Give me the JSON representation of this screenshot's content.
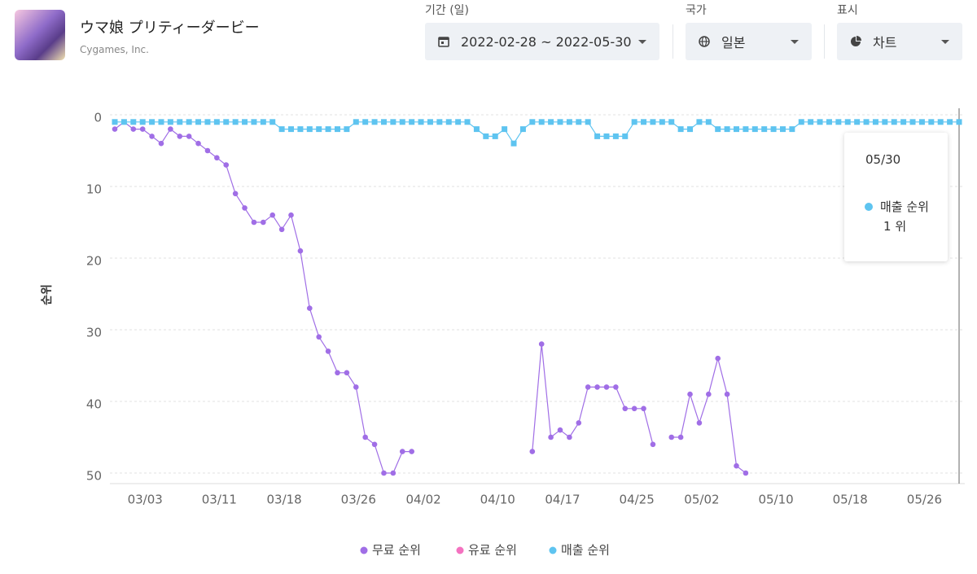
{
  "header": {
    "app_title": "ウマ娘 プリティーダービー",
    "publisher": "Cygames, Inc."
  },
  "filters": [
    {
      "label": "기간 (일)",
      "value": "2022-02-28 ~ 2022-05-30"
    },
    {
      "label": "국가",
      "value": "일본"
    },
    {
      "label": "표시",
      "value": "차트"
    }
  ],
  "chart_data": {
    "type": "line",
    "ylabel": "순위",
    "ylim": [
      0,
      50
    ],
    "yticks": [
      0,
      10,
      20,
      30,
      40,
      50
    ],
    "y_reversed": true,
    "grid": true,
    "legend": "bottom",
    "categories": [
      null,
      null,
      null,
      "03/03",
      null,
      null,
      null,
      null,
      null,
      null,
      null,
      "03/11",
      null,
      null,
      null,
      null,
      null,
      null,
      "03/18",
      null,
      null,
      null,
      null,
      null,
      null,
      null,
      "03/26",
      null,
      null,
      null,
      null,
      null,
      null,
      "04/02",
      null,
      null,
      null,
      null,
      null,
      null,
      null,
      "04/10",
      null,
      null,
      null,
      null,
      null,
      null,
      "04/17",
      null,
      null,
      null,
      null,
      null,
      null,
      null,
      "04/25",
      null,
      null,
      null,
      null,
      null,
      null,
      "05/02",
      null,
      null,
      null,
      null,
      null,
      null,
      null,
      "05/10",
      null,
      null,
      null,
      null,
      null,
      null,
      null,
      "05/18",
      null,
      null,
      null,
      null,
      null,
      null,
      null,
      "05/26",
      null,
      null,
      null,
      "05/30"
    ],
    "series": [
      {
        "name": "무료 순위",
        "color": "#a06ee6",
        "marker": "circle",
        "values": [
          2,
          1,
          2,
          2,
          3,
          4,
          2,
          3,
          3,
          4,
          5,
          6,
          7,
          11,
          13,
          15,
          15,
          14,
          16,
          14,
          19,
          27,
          31,
          33,
          36,
          36,
          38,
          45,
          46,
          50,
          50,
          47,
          47,
          null,
          null,
          null,
          null,
          null,
          null,
          null,
          null,
          null,
          null,
          null,
          null,
          47,
          32,
          45,
          44,
          45,
          43,
          38,
          38,
          38,
          38,
          41,
          41,
          41,
          46,
          null,
          45,
          45,
          39,
          43,
          39,
          34,
          39,
          49,
          50,
          null,
          null,
          null,
          null,
          null,
          null,
          null,
          null,
          null,
          null,
          null,
          null,
          null,
          null,
          null,
          null,
          null,
          null,
          null,
          null,
          null,
          null,
          null
        ]
      },
      {
        "name": "유료 순위",
        "color": "#f472c0",
        "marker": "circle",
        "values": [
          null,
          null,
          null,
          null,
          null,
          null,
          null,
          null,
          null,
          null,
          null,
          null,
          null,
          null,
          null,
          null,
          null,
          null,
          null,
          null,
          null,
          null,
          null,
          null,
          null,
          null,
          null,
          null,
          null,
          null,
          null,
          null,
          null,
          null,
          null,
          null,
          null,
          null,
          null,
          null,
          null,
          null,
          null,
          null,
          null,
          null,
          null,
          null,
          null,
          null,
          null,
          null,
          null,
          null,
          null,
          null,
          null,
          null,
          null,
          null,
          null,
          null,
          null,
          null,
          null,
          null,
          null,
          null,
          null,
          null,
          null,
          null,
          null,
          null,
          null,
          null,
          null,
          null,
          null,
          null,
          null,
          null,
          null,
          null,
          null,
          null,
          null,
          null,
          null,
          null,
          null,
          null
        ]
      },
      {
        "name": "매출 순위",
        "color": "#5ec4f0",
        "marker": "square",
        "values": [
          1,
          1,
          1,
          1,
          1,
          1,
          1,
          1,
          1,
          1,
          1,
          1,
          1,
          1,
          1,
          1,
          1,
          1,
          2,
          2,
          2,
          2,
          2,
          2,
          2,
          2,
          1,
          1,
          1,
          1,
          1,
          1,
          1,
          1,
          1,
          1,
          1,
          1,
          1,
          2,
          3,
          3,
          2,
          4,
          2,
          1,
          1,
          1,
          1,
          1,
          1,
          1,
          3,
          3,
          3,
          3,
          1,
          1,
          1,
          1,
          1,
          2,
          2,
          1,
          1,
          2,
          2,
          2,
          2,
          2,
          2,
          2,
          2,
          2,
          1,
          1,
          1,
          1,
          1,
          1,
          1,
          1,
          1,
          1,
          1,
          1,
          1,
          1,
          1,
          1,
          1,
          1
        ]
      }
    ],
    "tooltip": {
      "index": 91,
      "series": 2,
      "unit": "위"
    }
  }
}
